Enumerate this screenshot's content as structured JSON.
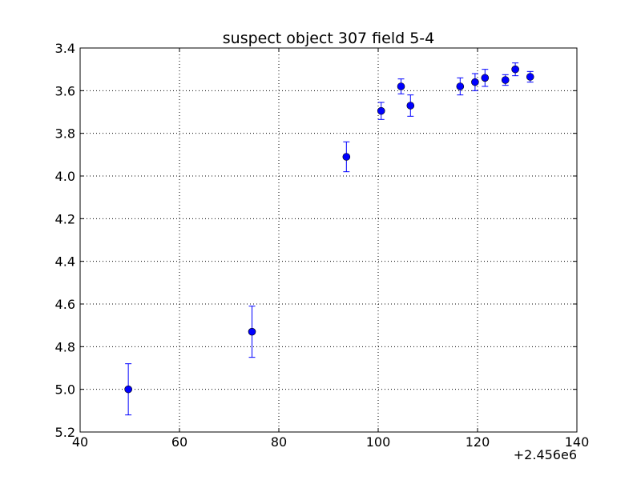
{
  "chart_data": {
    "type": "scatter",
    "title": "suspect object 307 field 5-4",
    "xlabel": "",
    "ylabel": "",
    "x_offset_label": "+2.456e6",
    "xlim": [
      40,
      140
    ],
    "ylim": [
      3.4,
      5.2
    ],
    "y_inverted": true,
    "grid": true,
    "marker_color": "#0000ff",
    "x_ticks": [
      "40",
      "60",
      "80",
      "100",
      "120",
      "140"
    ],
    "y_ticks": [
      "3.4",
      "3.6",
      "3.8",
      "4.0",
      "4.2",
      "4.4",
      "4.6",
      "4.8",
      "5.0",
      "5.2"
    ],
    "series": [
      {
        "x": [
          49.7,
          74.6,
          93.6,
          100.6,
          104.6,
          106.5,
          116.5,
          119.5,
          121.5,
          125.6,
          127.6,
          130.6
        ],
        "y": [
          5.0,
          4.73,
          3.91,
          3.695,
          3.58,
          3.67,
          3.58,
          3.56,
          3.54,
          3.55,
          3.5,
          3.535
        ],
        "error": [
          0.12,
          0.12,
          0.07,
          0.04,
          0.035,
          0.05,
          0.04,
          0.04,
          0.04,
          0.025,
          0.03,
          0.025
        ]
      }
    ]
  }
}
